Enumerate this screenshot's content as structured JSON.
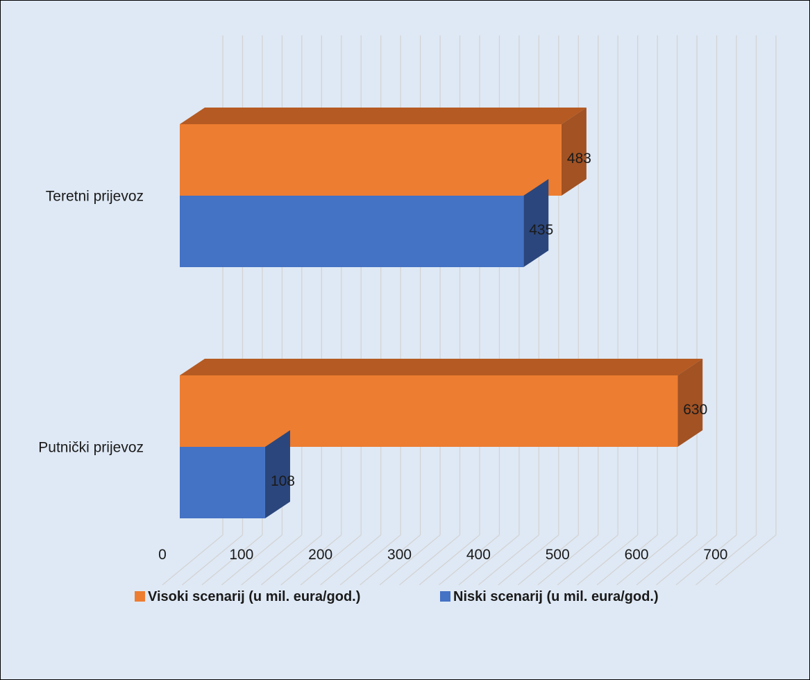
{
  "chart_data": {
    "type": "bar",
    "orientation": "horizontal",
    "style": "3d-clustered",
    "categories": [
      "Teretni prijevoz",
      "Putnički prijevoz"
    ],
    "series": [
      {
        "name": "Visoki scenarij (u mil. eura/god.)",
        "values": [
          483,
          630
        ],
        "color": "#ed7d31",
        "top_color": "#b55a22",
        "side_color": "#a25223"
      },
      {
        "name": "Niski scenarij (u mil. eura/god.)",
        "values": [
          435,
          108
        ],
        "color": "#4472c4",
        "top_color": "#2f4f8a",
        "side_color": "#2b467c"
      }
    ],
    "xlim": [
      0,
      700
    ],
    "x_ticks": [
      0,
      100,
      200,
      300,
      400,
      500,
      600,
      700
    ],
    "x_tick_labels": [
      "0",
      "100",
      "200",
      "300",
      "400",
      "500",
      "600",
      "700"
    ],
    "data_labels": true,
    "legend_position": "bottom",
    "background_color": "#dfe9f5",
    "grid": true
  }
}
